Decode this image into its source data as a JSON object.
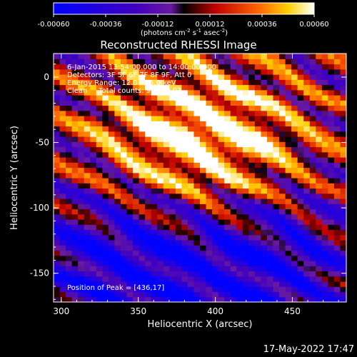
{
  "chart_data": {
    "type": "heatmap",
    "title": "Reconstructed RHESSI Image",
    "xlabel": "Heliocentric X (arcsec)",
    "ylabel": "Heliocentric Y (arcsec)",
    "xlim": [
      295,
      485
    ],
    "ylim": [
      -172,
      18
    ],
    "x_ticks": [
      300,
      350,
      400,
      450
    ],
    "y_ticks": [
      0,
      -50,
      -100,
      -150
    ],
    "colorbar": {
      "range": [
        -0.0006,
        0.0006
      ],
      "ticks": [
        "-0.00060",
        "-0.00036",
        "-0.00012",
        "0.00012",
        "0.00036",
        "0.00060"
      ],
      "unit_label": "(photons cm",
      "unit_exp1": "-2",
      "unit_mid": " s",
      "unit_exp2": "-1",
      "unit_mid2": " asec",
      "unit_exp3": "-2",
      "unit_end": ")"
    },
    "annotations": [
      "6-Jan-2015 13:54:00.000 to 14:00:00.000",
      "Detectors: 3F 5F 6F 7F 8F 9F, Att 0",
      "Energy Range: 12.0 - 25.0 keV",
      "Clean     Total counts: 9.37E+03"
    ],
    "peak_label": "Position of Peak = [436,17]",
    "peak": [
      436,
      17
    ],
    "pattern": {
      "grid": [
        48,
        48
      ],
      "stripe_angle_deg": -35,
      "stripe_period_arcsec": 28,
      "hot_centers": [
        [
          412,
          -60
        ],
        [
          370,
          -40
        ]
      ],
      "cold_centers": [
        [
          340,
          -145
        ],
        [
          430,
          -140
        ]
      ]
    }
  },
  "footer_timestamp": "17-May-2022 17:47"
}
